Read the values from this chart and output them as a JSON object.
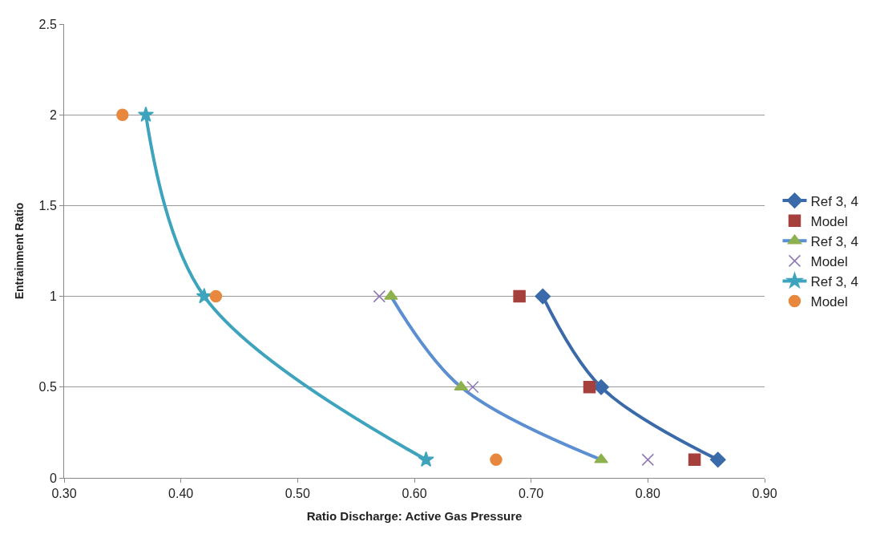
{
  "chart_data": {
    "type": "scatter",
    "xlabel": "Ratio Discharge: Active Gas Pressure",
    "ylabel": "Entrainment Ratio",
    "xlim": [
      0.3,
      0.9
    ],
    "xticks": [
      {
        "value": 0.3,
        "label": "0.30"
      },
      {
        "value": 0.4,
        "label": "0.40"
      },
      {
        "value": 0.5,
        "label": "0.50"
      },
      {
        "value": 0.6,
        "label": "0.60"
      },
      {
        "value": 0.7,
        "label": "0.70"
      },
      {
        "value": 0.8,
        "label": "0.80"
      },
      {
        "value": 0.9,
        "label": "0.90"
      }
    ],
    "ylim": [
      0,
      2.5
    ],
    "yticks": [
      0,
      0.5,
      1,
      1.5,
      2,
      2.5
    ],
    "grid": "y",
    "legend": "right",
    "series": [
      {
        "name": "Ref 3, 4",
        "type": "line",
        "color": "#3a6aaa",
        "marker": "diamond",
        "x": [
          0.71,
          0.76,
          0.86
        ],
        "values": [
          1,
          0.5,
          0.1
        ]
      },
      {
        "name": "Model",
        "color": "#a5403c",
        "marker": "square",
        "x": [
          0.69,
          0.75,
          0.84
        ],
        "values": [
          1,
          0.5,
          0.1
        ]
      },
      {
        "name": "Ref 3, 4",
        "type": "line",
        "color": "#5b8fd2",
        "colors": [
          "#8cb14e",
          "#8cb14e",
          "#8cb14e"
        ],
        "marker": "triangle",
        "x": [
          0.58,
          0.64,
          0.76
        ],
        "values": [
          1,
          0.5,
          0.1
        ]
      },
      {
        "name": "Model",
        "color": "#8d77b5",
        "marker": "cross",
        "x": [
          0.57,
          0.65,
          0.8
        ],
        "values": [
          1,
          0.5,
          0.1
        ]
      },
      {
        "name": "Ref 3, 4",
        "type": "line",
        "color": "#3ea3bd",
        "marker": "star",
        "x": [
          0.37,
          0.42,
          0.61
        ],
        "values": [
          2,
          1,
          0.1
        ]
      },
      {
        "name": "Model",
        "color": "#e8883e",
        "marker": "circle",
        "x": [
          0.35,
          0.43,
          0.67
        ],
        "values": [
          2,
          1,
          0.1
        ]
      }
    ]
  }
}
